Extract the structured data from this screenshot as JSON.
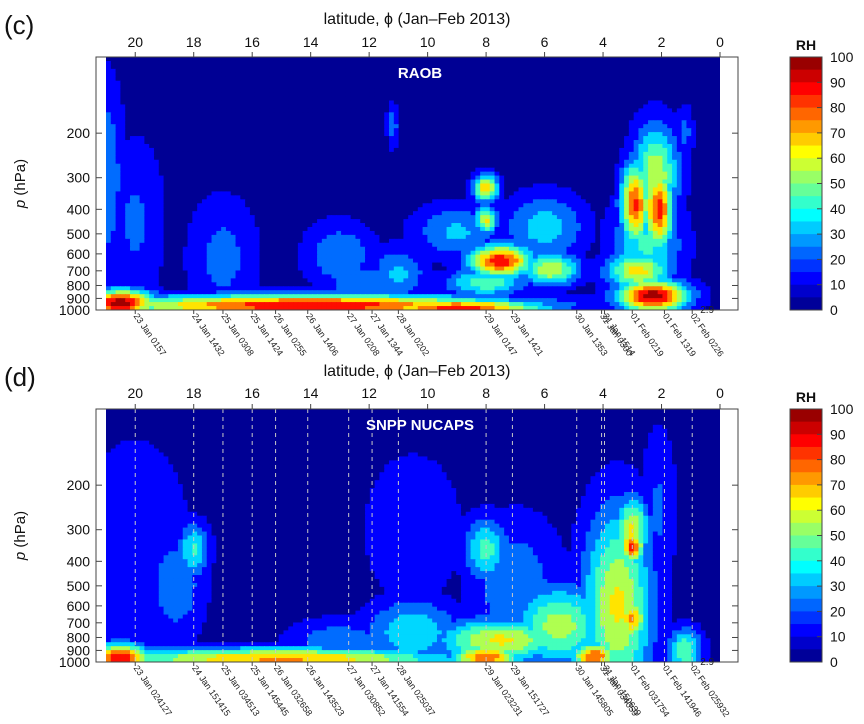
{
  "chart_data": [
    {
      "type": "heatmap",
      "panel_label": "(c)",
      "title": "RAOB",
      "top_axis_label": "latitude, ϕ  (Jan–Feb 2013)",
      "top_ticks": [
        "20",
        "18",
        "16",
        "14",
        "12",
        "10",
        "8",
        "6",
        "4",
        "2",
        "0"
      ],
      "top_tick_values": [
        20,
        18,
        16,
        14,
        12,
        10,
        8,
        6,
        4,
        2,
        0
      ],
      "xlim": [
        21,
        0
      ],
      "ylabel_var": "p",
      "ylabel_unit": " (hPa)",
      "y_ticks": [
        "200",
        "300",
        "400",
        "500",
        "600",
        "700",
        "800",
        "900",
        "1000"
      ],
      "y_tick_values": [
        200,
        300,
        400,
        500,
        600,
        700,
        800,
        900,
        1000
      ],
      "ylim": [
        100,
        1000
      ],
      "y_scale": "log",
      "colorbar": {
        "label": "RH",
        "ticks": [
          "100",
          "90",
          "80",
          "70",
          "60",
          "50",
          "40",
          "30",
          "20",
          "10",
          "0"
        ],
        "range": [
          0,
          100
        ]
      },
      "profile_dashes": false,
      "profiles": [
        {
          "label": "23 Jan 0157",
          "lat": 20.0
        },
        {
          "label": "24 Jan 1432",
          "lat": 18.0
        },
        {
          "label": "25 Jan 0308",
          "lat": 17.0
        },
        {
          "label": "25 Jan 1424",
          "lat": 16.0
        },
        {
          "label": "26 Jan 0255",
          "lat": 15.2
        },
        {
          "label": "26 Jan 1406",
          "lat": 14.1
        },
        {
          "label": "27 Jan 0208",
          "lat": 12.7
        },
        {
          "label": "27 Jan 1344",
          "lat": 11.9
        },
        {
          "label": "28 Jan 0202",
          "lat": 11.0
        },
        {
          "label": "29 Jan 0147",
          "lat": 8.0
        },
        {
          "label": "29 Jan 1421",
          "lat": 7.1
        },
        {
          "label": "30 Jan 1353",
          "lat": 4.9
        },
        {
          "label": "31 Jan 0300",
          "lat": 4.05
        },
        {
          "label": "31 Jan 1514",
          "lat": 3.95
        },
        {
          "label": "01 Feb 0219",
          "lat": 3.0
        },
        {
          "label": "01 Feb 1319",
          "lat": 1.9
        },
        {
          "label": "02 Feb 0226",
          "lat": 0.95
        }
      ],
      "extra_label": "2.9",
      "features": [
        {
          "lat": 21,
          "w": 0.6,
          "p": 300,
          "dp": 0.35,
          "rh": 30
        },
        {
          "lat": 20,
          "w": 1.0,
          "p": 450,
          "dp": 0.3,
          "rh": 22
        },
        {
          "lat": 17,
          "w": 1.2,
          "p": 620,
          "dp": 0.22,
          "rh": 24
        },
        {
          "lat": 13,
          "w": 1.2,
          "p": 610,
          "dp": 0.12,
          "rh": 30
        },
        {
          "lat": 11,
          "w": 1.0,
          "p": 720,
          "dp": 0.1,
          "rh": 32
        },
        {
          "lat": 11.2,
          "w": 0.2,
          "p": 185,
          "dp": 0.08,
          "rh": 28
        },
        {
          "lat": 9,
          "w": 1.5,
          "p": 490,
          "dp": 0.1,
          "rh": 32
        },
        {
          "lat": 8,
          "w": 0.45,
          "p": 330,
          "dp": 0.05,
          "rh": 68
        },
        {
          "lat": 8,
          "w": 0.4,
          "p": 440,
          "dp": 0.05,
          "rh": 62
        },
        {
          "lat": 6,
          "w": 1.4,
          "p": 470,
          "dp": 0.12,
          "rh": 36
        },
        {
          "lat": 7.5,
          "w": 1.1,
          "p": 640,
          "dp": 0.06,
          "rh": 88
        },
        {
          "lat": 5.8,
          "w": 1.0,
          "p": 690,
          "dp": 0.06,
          "rh": 60
        },
        {
          "lat": 8,
          "w": 1.4,
          "p": 780,
          "dp": 0.05,
          "rh": 48
        },
        {
          "lat": 12,
          "w": 1.6,
          "p": 800,
          "dp": 0.08,
          "rh": 30
        },
        {
          "lat": 2.9,
          "w": 0.5,
          "p": 380,
          "dp": 0.15,
          "rh": 82
        },
        {
          "lat": 2.1,
          "w": 0.5,
          "p": 400,
          "dp": 0.15,
          "rh": 84
        },
        {
          "lat": 2.2,
          "w": 0.8,
          "p": 290,
          "dp": 0.18,
          "rh": 58
        },
        {
          "lat": 2.5,
          "w": 1.2,
          "p": 550,
          "dp": 0.18,
          "rh": 42
        },
        {
          "lat": 2.8,
          "w": 1.1,
          "p": 700,
          "dp": 0.07,
          "rh": 64
        },
        {
          "lat": 2.3,
          "w": 1.2,
          "p": 880,
          "dp": 0.06,
          "rh": 96
        },
        {
          "lat": 14,
          "w": 7.0,
          "p": 960,
          "dp": 0.04,
          "rh": 90
        },
        {
          "lat": 9,
          "w": 3.0,
          "p": 980,
          "dp": 0.03,
          "rh": 85
        },
        {
          "lat": 20.5,
          "w": 1.2,
          "p": 940,
          "dp": 0.05,
          "rh": 95
        },
        {
          "lat": 1.2,
          "w": 0.3,
          "p": 200,
          "dp": 0.1,
          "rh": 24
        }
      ]
    },
    {
      "type": "heatmap",
      "panel_label": "(d)",
      "title": "SNPP NUCAPS",
      "top_axis_label": "latitude, ϕ  (Jan–Feb 2013)",
      "top_ticks": [
        "20",
        "18",
        "16",
        "14",
        "12",
        "10",
        "8",
        "6",
        "4",
        "2",
        "0"
      ],
      "top_tick_values": [
        20,
        18,
        16,
        14,
        12,
        10,
        8,
        6,
        4,
        2,
        0
      ],
      "xlim": [
        21,
        0
      ],
      "ylabel_var": "p",
      "ylabel_unit": " (hPa)",
      "y_ticks": [
        "200",
        "300",
        "400",
        "500",
        "600",
        "700",
        "800",
        "900",
        "1000"
      ],
      "y_tick_values": [
        200,
        300,
        400,
        500,
        600,
        700,
        800,
        900,
        1000
      ],
      "ylim": [
        100,
        1000
      ],
      "y_scale": "log",
      "colorbar": {
        "label": "RH",
        "ticks": [
          "100",
          "90",
          "80",
          "70",
          "60",
          "50",
          "40",
          "30",
          "20",
          "10",
          "0"
        ],
        "range": [
          0,
          100
        ]
      },
      "profile_dashes": true,
      "profiles": [
        {
          "label": "23 Jan 024127",
          "lat": 20.0
        },
        {
          "label": "24 Jan 151415",
          "lat": 18.0
        },
        {
          "label": "25 Jan 034513",
          "lat": 17.0
        },
        {
          "label": "25 Jan 145445",
          "lat": 16.0
        },
        {
          "label": "26 Jan 032658",
          "lat": 15.2
        },
        {
          "label": "26 Jan 143523",
          "lat": 14.1
        },
        {
          "label": "27 Jan 030852",
          "lat": 12.7
        },
        {
          "label": "27 Jan 141554",
          "lat": 11.9
        },
        {
          "label": "28 Jan 025037",
          "lat": 11.0
        },
        {
          "label": "29 Jan 023231",
          "lat": 8.0
        },
        {
          "label": "29 Jan 151727",
          "lat": 7.1
        },
        {
          "label": "30 Jan 145805",
          "lat": 4.9
        },
        {
          "label": "31 Jan 034059",
          "lat": 4.05
        },
        {
          "label": "31 Jan 150639",
          "lat": 3.95
        },
        {
          "label": "01 Feb 031754",
          "lat": 3.0
        },
        {
          "label": "01 Feb 141946",
          "lat": 1.9
        },
        {
          "label": "02 Feb 025932",
          "lat": 0.95
        }
      ],
      "extra_label": "2.9",
      "features": [
        {
          "lat": 20,
          "w": 2.0,
          "p": 400,
          "dp": 0.45,
          "rh": 20
        },
        {
          "lat": 18,
          "w": 0.55,
          "p": 360,
          "dp": 0.1,
          "rh": 42
        },
        {
          "lat": 18.6,
          "w": 1.0,
          "p": 500,
          "dp": 0.2,
          "rh": 28
        },
        {
          "lat": 10.5,
          "w": 1.8,
          "p": 300,
          "dp": 0.3,
          "rh": 18
        },
        {
          "lat": 8,
          "w": 0.8,
          "p": 360,
          "dp": 0.12,
          "rh": 44
        },
        {
          "lat": 7,
          "w": 1.6,
          "p": 500,
          "dp": 0.25,
          "rh": 28
        },
        {
          "lat": 5.5,
          "w": 1.6,
          "p": 720,
          "dp": 0.15,
          "rh": 55
        },
        {
          "lat": 7.5,
          "w": 2.2,
          "p": 820,
          "dp": 0.08,
          "rh": 62
        },
        {
          "lat": 10.5,
          "w": 1.6,
          "p": 760,
          "dp": 0.12,
          "rh": 40
        },
        {
          "lat": 13,
          "w": 1.8,
          "p": 830,
          "dp": 0.08,
          "rh": 28
        },
        {
          "lat": 3.5,
          "w": 1.2,
          "p": 600,
          "dp": 0.35,
          "rh": 62
        },
        {
          "lat": 3,
          "w": 0.4,
          "p": 350,
          "dp": 0.06,
          "rh": 84
        },
        {
          "lat": 3,
          "w": 0.6,
          "p": 300,
          "dp": 0.12,
          "rh": 62
        },
        {
          "lat": 3,
          "w": 0.5,
          "p": 680,
          "dp": 0.08,
          "rh": 72
        },
        {
          "lat": 2.1,
          "w": 0.6,
          "p": 250,
          "dp": 0.3,
          "rh": 22
        },
        {
          "lat": 5,
          "w": 0.8,
          "p": 830,
          "dp": 0.05,
          "rh": 32
        },
        {
          "lat": 4.3,
          "w": 0.8,
          "p": 950,
          "dp": 0.05,
          "rh": 80
        },
        {
          "lat": 8,
          "w": 1.2,
          "p": 960,
          "dp": 0.05,
          "rh": 78
        },
        {
          "lat": 15,
          "w": 6.0,
          "p": 970,
          "dp": 0.04,
          "rh": 72
        },
        {
          "lat": 20.5,
          "w": 1.0,
          "p": 960,
          "dp": 0.05,
          "rh": 88
        },
        {
          "lat": 1.2,
          "w": 0.6,
          "p": 900,
          "dp": 0.08,
          "rh": 50
        }
      ]
    }
  ]
}
